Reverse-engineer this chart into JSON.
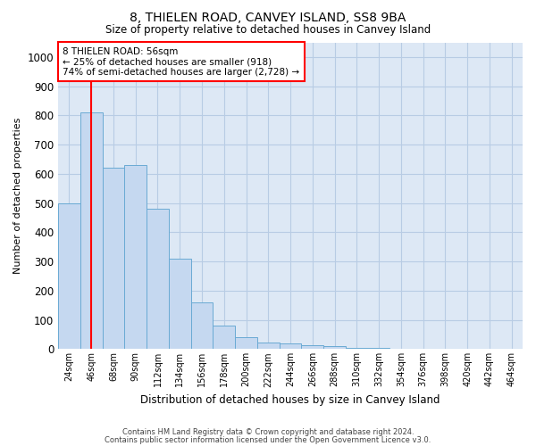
{
  "title1": "8, THIELEN ROAD, CANVEY ISLAND, SS8 9BA",
  "title2": "Size of property relative to detached houses in Canvey Island",
  "xlabel": "Distribution of detached houses by size in Canvey Island",
  "ylabel": "Number of detached properties",
  "footer1": "Contains HM Land Registry data © Crown copyright and database right 2024.",
  "footer2": "Contains public sector information licensed under the Open Government Licence v3.0.",
  "annotation_line1": "8 THIELEN ROAD: 56sqm",
  "annotation_line2": "← 25% of detached houses are smaller (918)",
  "annotation_line3": "74% of semi-detached houses are larger (2,728) →",
  "categories": [
    "24sqm",
    "46sqm",
    "68sqm",
    "90sqm",
    "112sqm",
    "134sqm",
    "156sqm",
    "178sqm",
    "200sqm",
    "222sqm",
    "244sqm",
    "266sqm",
    "288sqm",
    "310sqm",
    "332sqm",
    "354sqm",
    "376sqm",
    "398sqm",
    "420sqm",
    "442sqm",
    "464sqm"
  ],
  "bar_heights": [
    500,
    810,
    620,
    630,
    480,
    310,
    160,
    80,
    42,
    22,
    18,
    12,
    9,
    5,
    3,
    2,
    1,
    1,
    1,
    1,
    1
  ],
  "bar_color": "#c5d8f0",
  "bar_edge_color": "#6aaad4",
  "red_line_x": 1,
  "ylim": [
    0,
    1050
  ],
  "yticks": [
    0,
    100,
    200,
    300,
    400,
    500,
    600,
    700,
    800,
    900,
    1000
  ],
  "plot_bg_color": "#dde8f5",
  "background_color": "#ffffff",
  "grid_color": "#b8cce4"
}
